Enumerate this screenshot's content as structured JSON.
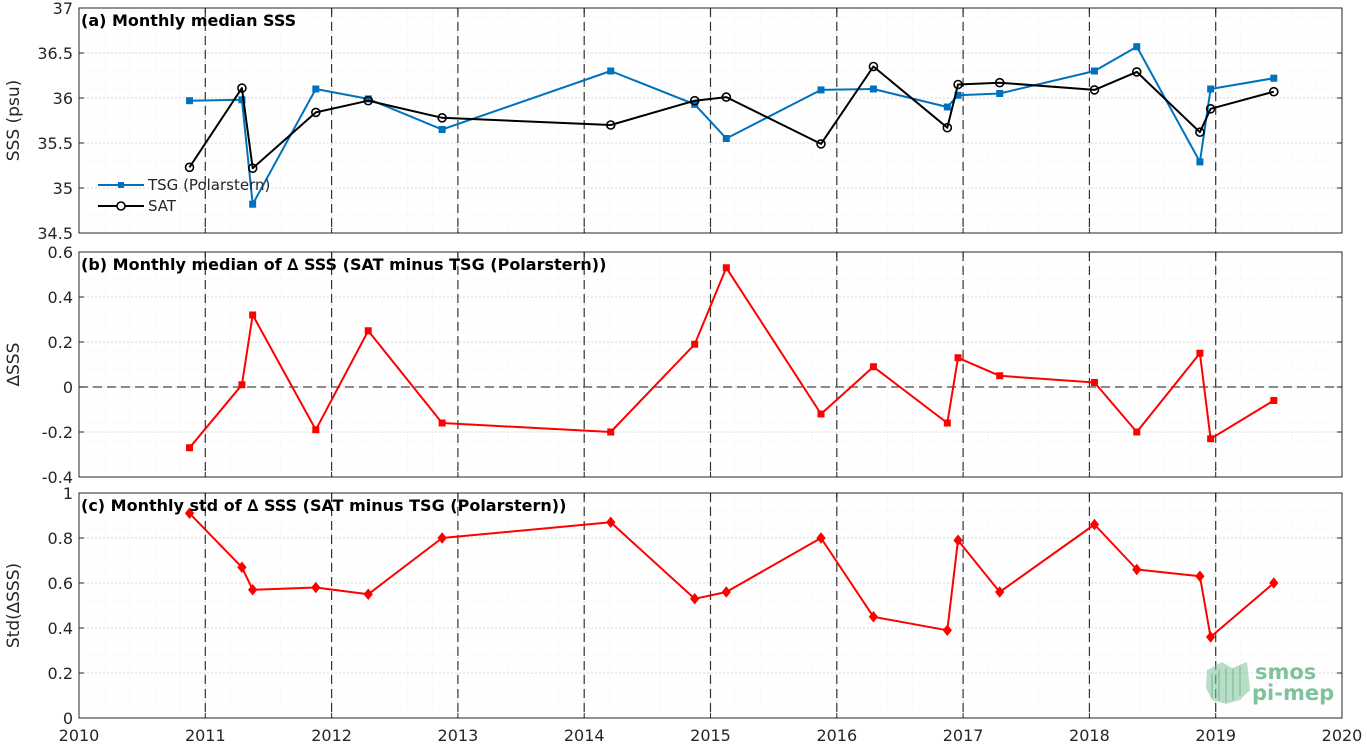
{
  "colors": {
    "tsg": "#0072BD",
    "sat": "#000000",
    "delta": "#FF0000",
    "grid_major": "#D0D0D0",
    "grid_minor": "#ECECEC"
  },
  "x_axis": {
    "xlim": [
      2010,
      2020
    ],
    "ticks": [
      2010,
      2011,
      2012,
      2013,
      2014,
      2015,
      2016,
      2017,
      2018,
      2019,
      2020
    ],
    "tick_labels": [
      "2010",
      "2011",
      "2012",
      "2013",
      "2014",
      "2015",
      "2016",
      "2017",
      "2018",
      "2019",
      "2020"
    ],
    "year_boundaries": [
      2011,
      2012,
      2013,
      2014,
      2015,
      2016,
      2017,
      2018,
      2019
    ]
  },
  "logo": {
    "line1": "smos",
    "line2": "pi-mep"
  },
  "chart_data": [
    {
      "type": "line",
      "title": "(a) Monthly median SSS",
      "ylabel": "SSS (psu)",
      "ylim": [
        34.5,
        37
      ],
      "yticks": [
        34.5,
        35,
        35.5,
        36,
        36.5,
        37
      ],
      "ytick_labels": [
        "34.5",
        "35",
        "35.5",
        "36",
        "36.5",
        "37"
      ],
      "grid": true,
      "legend_position": "bottom-left",
      "series": [
        {
          "name": "TSG (Polarstern)",
          "marker": "square",
          "x": [
            2010.875,
            2011.29,
            2011.375,
            2011.875,
            2012.29,
            2012.875,
            2014.21,
            2014.875,
            2015.125,
            2015.875,
            2016.29,
            2016.875,
            2016.96,
            2017.29,
            2018.04,
            2018.375,
            2018.875,
            2018.96,
            2019.46
          ],
          "y": [
            35.97,
            35.98,
            34.82,
            36.1,
            35.99,
            35.65,
            36.3,
            35.93,
            35.55,
            36.09,
            36.1,
            35.9,
            36.03,
            36.05,
            36.3,
            36.57,
            35.29,
            36.1,
            36.22
          ]
        },
        {
          "name": "SAT",
          "marker": "circle",
          "x": [
            2010.875,
            2011.29,
            2011.375,
            2011.875,
            2012.29,
            2012.875,
            2014.21,
            2014.875,
            2015.125,
            2015.875,
            2016.29,
            2016.875,
            2016.96,
            2017.29,
            2018.04,
            2018.375,
            2018.875,
            2018.96,
            2019.46
          ],
          "y": [
            35.23,
            36.11,
            35.22,
            35.84,
            35.97,
            35.78,
            35.7,
            35.97,
            36.01,
            35.49,
            36.35,
            35.67,
            36.15,
            36.17,
            36.09,
            36.29,
            35.62,
            35.88,
            36.07
          ]
        }
      ]
    },
    {
      "type": "line",
      "title": "(b) Monthly median of ∆ SSS (SAT minus TSG (Polarstern))",
      "ylabel": "∆SSS",
      "ylim": [
        -0.4,
        0.6
      ],
      "yticks": [
        -0.4,
        -0.2,
        0,
        0.2,
        0.4,
        0.6
      ],
      "ytick_labels": [
        "-0.4",
        "-0.2",
        "0",
        "0.2",
        "0.4",
        "0.6"
      ],
      "grid": true,
      "zero_line": true,
      "series": [
        {
          "marker": "square",
          "x": [
            2010.875,
            2011.29,
            2011.375,
            2011.875,
            2012.29,
            2012.875,
            2014.21,
            2014.875,
            2015.125,
            2015.875,
            2016.29,
            2016.875,
            2016.96,
            2017.29,
            2018.04,
            2018.375,
            2018.875,
            2018.96,
            2019.46
          ],
          "y": [
            -0.27,
            0.01,
            0.32,
            -0.19,
            0.25,
            -0.16,
            -0.2,
            0.19,
            0.53,
            -0.12,
            0.09,
            -0.16,
            0.13,
            0.05,
            0.02,
            -0.2,
            0.15,
            -0.23,
            -0.06
          ]
        }
      ]
    },
    {
      "type": "line",
      "title": "(c) Monthly std of ∆ SSS (SAT minus TSG (Polarstern))",
      "ylabel": "Std(∆SSS)",
      "ylim": [
        0,
        1
      ],
      "yticks": [
        0,
        0.2,
        0.4,
        0.6,
        0.8,
        1
      ],
      "ytick_labels": [
        "0",
        "0.2",
        "0.4",
        "0.6",
        "0.8",
        "1"
      ],
      "grid": true,
      "series": [
        {
          "marker": "diamond",
          "x": [
            2010.875,
            2011.29,
            2011.375,
            2011.875,
            2012.29,
            2012.875,
            2014.21,
            2014.875,
            2015.125,
            2015.875,
            2016.29,
            2016.875,
            2016.96,
            2017.29,
            2018.04,
            2018.375,
            2018.875,
            2018.96,
            2019.46
          ],
          "y": [
            0.91,
            0.67,
            0.57,
            0.58,
            0.55,
            0.8,
            0.87,
            0.53,
            0.56,
            0.8,
            0.45,
            0.39,
            0.79,
            0.56,
            0.86,
            0.66,
            0.63,
            0.36,
            0.6
          ]
        }
      ]
    }
  ]
}
